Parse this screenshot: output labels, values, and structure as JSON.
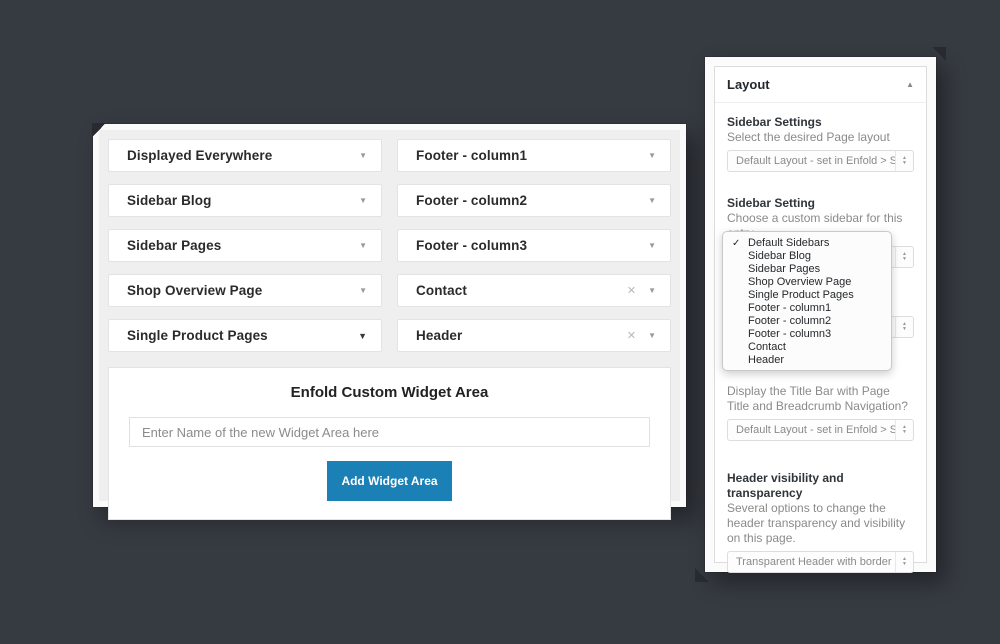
{
  "colors": {
    "background": "#363a41",
    "accent_blue": "#1a80b6",
    "panel_surface": "#efefef",
    "row_text": "#2b2b2b",
    "muted_text": "#8a8a8a"
  },
  "icons": {
    "caret_down": "▼",
    "close": "✕",
    "collapse": "▲",
    "check": "✓",
    "stepper_up": "▲",
    "stepper_down": "▼"
  },
  "widget_panel": {
    "rows": [
      {
        "label": "Displayed Everywhere"
      },
      {
        "label": "Sidebar Blog"
      },
      {
        "label": "Sidebar Pages"
      },
      {
        "label": "Shop Overview Page"
      },
      {
        "label": "Single Product Pages"
      },
      {
        "label": "Footer - column1"
      },
      {
        "label": "Footer - column2"
      },
      {
        "label": "Footer - column3"
      },
      {
        "label": "Contact",
        "removable": true
      },
      {
        "label": "Header",
        "removable": true
      }
    ],
    "new_area": {
      "title": "Enfold Custom Widget Area",
      "input_placeholder": "Enter Name of the new Widget Area here",
      "input_value": "",
      "button_label": "Add Widget Area"
    }
  },
  "layout_metabox": {
    "title": "Layout",
    "sidebar_settings": {
      "heading": "Sidebar Settings",
      "description": "Select the desired Page layout",
      "select_value": "Default Layout - set in Enfold > S"
    },
    "sidebar_setting": {
      "heading": "Sidebar Setting",
      "description": "Choose a custom sidebar for this entry",
      "select_value": ""
    },
    "title_bar": {
      "description": "Display the Title Bar with Page Title and Breadcrumb Navigation?",
      "select_value": "Default Layout - set in Enfold > S"
    },
    "header_visibility": {
      "heading": "Header visibility and transparency",
      "description": "Several options to change the header transparency and visibility on this page.",
      "select_value": "Transparent Header with border"
    },
    "sidebar_dropdown": {
      "selected": "Default Sidebars",
      "options": [
        "Default Sidebars",
        "Sidebar Blog",
        "Sidebar Pages",
        "Shop Overview Page",
        "Single Product Pages",
        "Footer - column1",
        "Footer - column2",
        "Footer - column3",
        "Contact",
        "Header"
      ]
    }
  }
}
